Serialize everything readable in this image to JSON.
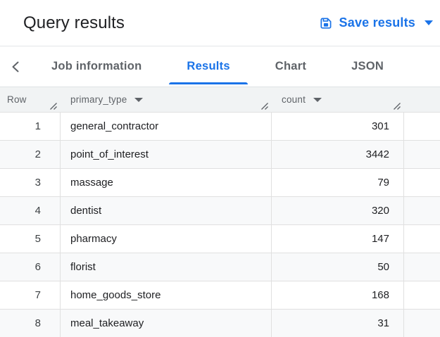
{
  "header": {
    "title": "Query results",
    "save_button": {
      "label": "Save results",
      "icon": "save-icon",
      "color": "#1a73e8"
    }
  },
  "tabs": {
    "back_icon": "chevron-left-icon",
    "items": [
      {
        "label": "Job information",
        "active": false
      },
      {
        "label": "Results",
        "active": true
      },
      {
        "label": "Chart",
        "active": false
      },
      {
        "label": "JSON",
        "active": false
      }
    ]
  },
  "table": {
    "columns": [
      {
        "label": "Row",
        "sortable": false,
        "resize_icon": "column-resize-icon"
      },
      {
        "label": "primary_type",
        "sortable": true,
        "sort_icon": "caret-down-icon",
        "resize_icon": "column-resize-icon"
      },
      {
        "label": "count",
        "sortable": true,
        "sort_icon": "caret-down-icon",
        "resize_icon": "column-resize-icon"
      }
    ],
    "rows": [
      {
        "row_number": "1",
        "primary_type": "general_contractor",
        "count": "301"
      },
      {
        "row_number": "2",
        "primary_type": "point_of_interest",
        "count": "3442"
      },
      {
        "row_number": "3",
        "primary_type": "massage",
        "count": "79"
      },
      {
        "row_number": "4",
        "primary_type": "dentist",
        "count": "320"
      },
      {
        "row_number": "5",
        "primary_type": "pharmacy",
        "count": "147"
      },
      {
        "row_number": "6",
        "primary_type": "florist",
        "count": "50"
      },
      {
        "row_number": "7",
        "primary_type": "home_goods_store",
        "count": "168"
      },
      {
        "row_number": "8",
        "primary_type": "meal_takeaway",
        "count": "31"
      }
    ]
  },
  "colors": {
    "accent_blue": "#1a73e8",
    "title_text": "#202124",
    "tab_inactive_text": "#5f6368",
    "table_header_bg": "#f1f3f4",
    "row_alt_bg": "#f8f9fa",
    "grid_border": "#e0e0e0",
    "cell_text": "#202124"
  }
}
